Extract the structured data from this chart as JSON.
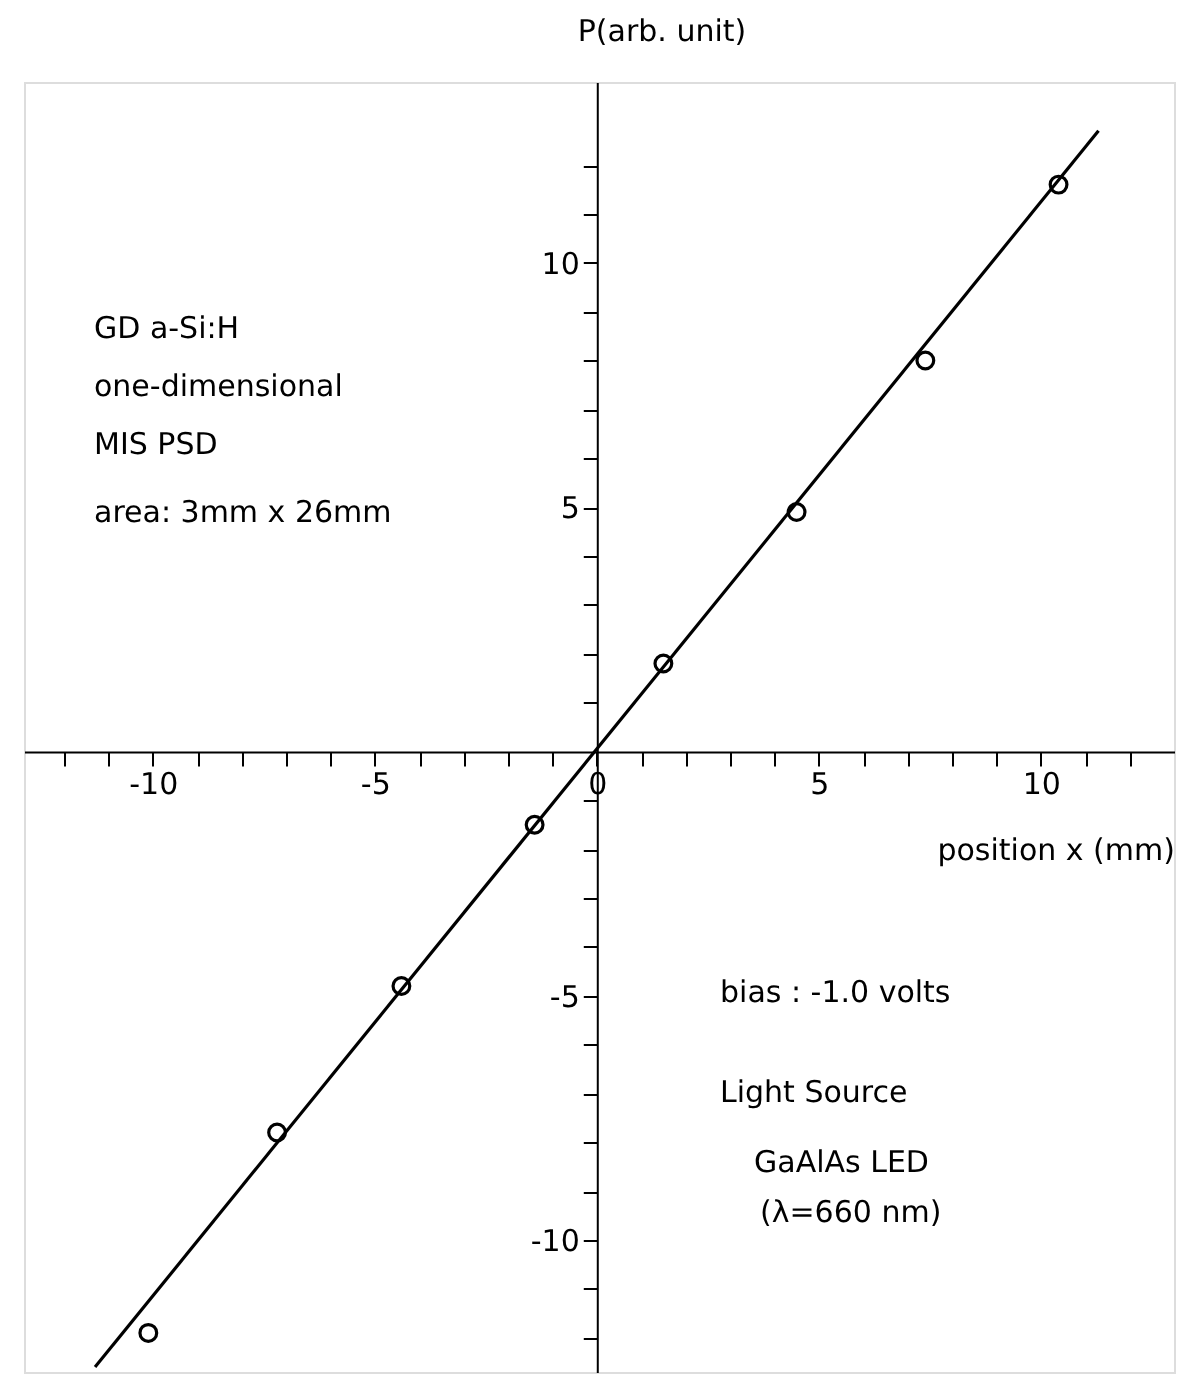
{
  "chart_data": {
    "type": "scatter",
    "xlabel": "position x (mm)",
    "ylabel": "P(arb. unit)",
    "xlim": [
      -12.9,
      13.0
    ],
    "ylim": [
      -12.7,
      13.7
    ],
    "xticks": [
      {
        "value": -12,
        "label": null
      },
      {
        "value": -11,
        "label": null
      },
      -10,
      {
        "value": -9,
        "label": null
      },
      {
        "value": -8,
        "label": null
      },
      {
        "value": -7,
        "label": null
      },
      {
        "value": -6,
        "label": null
      },
      -5,
      {
        "value": -4,
        "label": null
      },
      {
        "value": -3,
        "label": null
      },
      {
        "value": -2,
        "label": null
      },
      {
        "value": -1,
        "label": null
      },
      0,
      {
        "value": 1,
        "label": null
      },
      {
        "value": 2,
        "label": null
      },
      {
        "value": 3,
        "label": null
      },
      {
        "value": 4,
        "label": null
      },
      5,
      {
        "value": 6,
        "label": null
      },
      {
        "value": 7,
        "label": null
      },
      {
        "value": 8,
        "label": null
      },
      {
        "value": 9,
        "label": null
      },
      10,
      {
        "value": 11,
        "label": null
      },
      {
        "value": 12,
        "label": null
      }
    ],
    "yticks": [
      {
        "value": -12,
        "label": null
      },
      {
        "value": -11,
        "label": null
      },
      -10,
      {
        "value": -9,
        "label": null
      },
      {
        "value": -8,
        "label": null
      },
      {
        "value": -7,
        "label": null
      },
      {
        "value": -6,
        "label": null
      },
      -5,
      {
        "value": -4,
        "label": null
      },
      {
        "value": -3,
        "label": null
      },
      {
        "value": -2,
        "label": null
      },
      {
        "value": -1,
        "label": null
      },
      {
        "value": 1,
        "label": null
      },
      {
        "value": 2,
        "label": null
      },
      {
        "value": 3,
        "label": null
      },
      {
        "value": 4,
        "label": null
      },
      5,
      {
        "value": 6,
        "label": null
      },
      {
        "value": 7,
        "label": null
      },
      {
        "value": 8,
        "label": null
      },
      {
        "value": 9,
        "label": null
      },
      10,
      {
        "value": 11,
        "label": null
      },
      {
        "value": 12,
        "label": null
      }
    ],
    "grid": false,
    "marker": "circle",
    "series": [
      {
        "color": "#000000",
        "x": [
          -10.1,
          -7.2,
          -4.4,
          -1.4,
          1.5,
          4.5,
          7.4,
          10.4
        ],
        "values": [
          -11.9,
          -7.8,
          -4.8,
          -1.5,
          1.8,
          4.9,
          8.0,
          11.6
        ]
      },
      {
        "type": "line",
        "marker": "none",
        "color": "#000000",
        "x": [
          -11.3,
          11.3
        ],
        "values": [
          -12.6,
          12.7
        ]
      }
    ],
    "annotations": [
      "GD a-Si:H",
      "one-dimensional",
      "MIS PSD",
      "area: 3mm x 26mm",
      "bias : -1.0 volts",
      "Light Source",
      "GaAlAs LED",
      "(λ=660 nm)"
    ]
  }
}
